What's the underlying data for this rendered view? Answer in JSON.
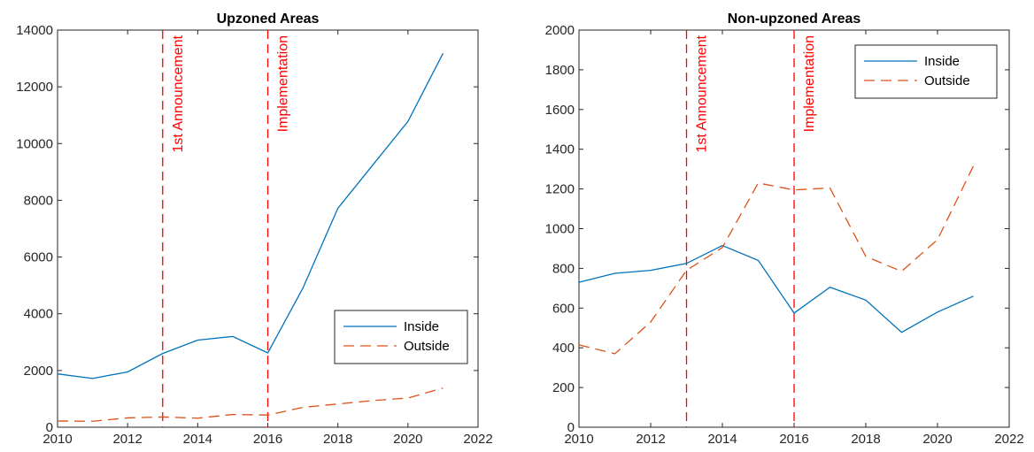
{
  "chart_data": [
    {
      "type": "line",
      "title": "Upzoned Areas",
      "xlabel": "",
      "ylabel": "",
      "xlim": [
        2010,
        2022
      ],
      "ylim": [
        0,
        14000
      ],
      "xticks": [
        2010,
        2012,
        2014,
        2016,
        2018,
        2020,
        2022
      ],
      "yticks": [
        0,
        2000,
        4000,
        6000,
        8000,
        10000,
        12000,
        14000
      ],
      "x": [
        2010,
        2011,
        2012,
        2013,
        2014,
        2015,
        2016,
        2017,
        2018,
        2019,
        2020,
        2021
      ],
      "series": [
        {
          "name": "Inside",
          "color": "#0072BD",
          "dash": "solid",
          "values": [
            1880,
            1720,
            1950,
            2600,
            3070,
            3200,
            2620,
            4900,
            7720,
            9250,
            10780,
            13180
          ]
        },
        {
          "name": "Outside",
          "color": "#D95319",
          "dash": "dashed",
          "values": [
            220,
            210,
            330,
            360,
            320,
            450,
            430,
            700,
            820,
            940,
            1030,
            1380
          ]
        }
      ],
      "events": [
        {
          "label": "1st Announcement",
          "x": 2013,
          "color": "#FF0000"
        },
        {
          "label": "Implementation",
          "x": 2016,
          "color": "#FF0000"
        }
      ],
      "legend_position": "bottom-right",
      "grid": false
    },
    {
      "type": "line",
      "title": "Non-upzoned Areas",
      "xlabel": "",
      "ylabel": "",
      "xlim": [
        2010,
        2022
      ],
      "ylim": [
        0,
        2000
      ],
      "xticks": [
        2010,
        2012,
        2014,
        2016,
        2018,
        2020,
        2022
      ],
      "yticks": [
        0,
        200,
        400,
        600,
        800,
        1000,
        1200,
        1400,
        1600,
        1800,
        2000
      ],
      "x": [
        2010,
        2011,
        2012,
        2013,
        2014,
        2015,
        2016,
        2017,
        2018,
        2019,
        2020,
        2021
      ],
      "series": [
        {
          "name": "Inside",
          "color": "#0072BD",
          "dash": "solid",
          "values": [
            730,
            775,
            790,
            825,
            915,
            840,
            575,
            705,
            640,
            478,
            580,
            660
          ]
        },
        {
          "name": "Outside",
          "color": "#D95319",
          "dash": "dashed",
          "values": [
            415,
            370,
            530,
            790,
            905,
            1230,
            1195,
            1205,
            860,
            785,
            945,
            1315
          ]
        }
      ],
      "events": [
        {
          "label": "1st Announcement",
          "x": 2013,
          "color": "#FF0000"
        },
        {
          "label": "Implementation",
          "x": 2016,
          "color": "#FF0000"
        }
      ],
      "legend_position": "top-right",
      "grid": false
    }
  ]
}
